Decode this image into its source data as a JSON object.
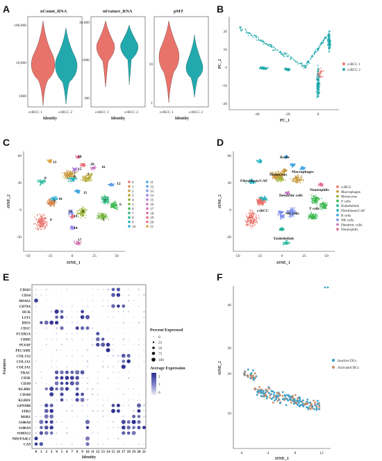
{
  "panels": {
    "A": "A",
    "B": "B",
    "C": "C",
    "D": "D",
    "E": "E",
    "F": "F"
  },
  "colors": {
    "ccRCC1": "#e8736b",
    "ccRCC2": "#22a9ad",
    "inactive": "#3aa0c8",
    "activated": "#c98b6a"
  },
  "chart_data": [
    {
      "id": "A",
      "type": "violin",
      "subplots": [
        {
          "title": "nCount_RNA",
          "yticks": [
            "100,000",
            "10,000",
            "1000"
          ],
          "xticks": [
            "ccRCC 1",
            "ccRCC 2"
          ],
          "xlabel": "Identity",
          "log": true
        },
        {
          "title": "nFeature_RNA",
          "yticks": [
            "10,000",
            "1000",
            "100"
          ],
          "xticks": [
            "ccRCC 1",
            "ccRCC 2"
          ],
          "xlabel": "Identity",
          "log": true
        },
        {
          "title": "pMT",
          "yticks": [
            "10",
            "1"
          ],
          "xticks": [
            "ccRCC 1",
            "ccRCC 2"
          ],
          "xlabel": "Identity",
          "log": true
        }
      ]
    },
    {
      "id": "B",
      "type": "scatter",
      "xlabel": "PC_1",
      "ylabel": "PC_2",
      "xticks": [
        "-40",
        "-20",
        "0"
      ],
      "yticks": [
        "20",
        "10",
        "0",
        "-10",
        "-20"
      ],
      "legend": [
        "ccRCC 1",
        "ccRCC 2"
      ]
    },
    {
      "id": "C",
      "type": "scatter",
      "xlabel": "tSNE_1",
      "ylabel": "tSNE_2",
      "xticks": [
        "-50",
        "-25",
        "0",
        "25",
        "50"
      ],
      "yticks": [
        "60",
        "30",
        "0",
        "-30"
      ],
      "clusters": [
        "0",
        "1",
        "2",
        "3",
        "4",
        "5",
        "6",
        "7",
        "8",
        "9",
        "10",
        "11",
        "12",
        "13",
        "14",
        "15",
        "16",
        "17",
        "18",
        "19",
        "20",
        "21"
      ]
    },
    {
      "id": "D",
      "type": "scatter",
      "xlabel": "tSNE_1",
      "ylabel": "tSNE_2",
      "xticks": [
        "-50",
        "-25",
        "0",
        "25",
        "50"
      ],
      "yticks": [
        "60",
        "30",
        "0",
        "-30"
      ],
      "legend": [
        "ccRCC",
        "Macrophages",
        "Monocytes",
        "T cells",
        "Endothelials",
        "Fibroblasts/CAF",
        "B cells",
        "NK cells",
        "Dendritic cells",
        "Neutrophils"
      ],
      "annotations": [
        "Bcells",
        "Monocytes",
        "Macrophages",
        "Fibroblasts/CAF",
        "Neutrophils",
        "Dendritic cells",
        "ccRCC",
        "T cells",
        "NK cells",
        "Endothelials"
      ]
    },
    {
      "id": "E",
      "type": "dotplot",
      "xlabel": "Identity",
      "ylabel": "Features",
      "genes": [
        "CD163",
        "CD14",
        "MS4A1",
        "CD79A",
        "HCK",
        "LST1",
        "IDO1",
        "CD1C",
        "FCER1A",
        "CDH5",
        "PLVAP",
        "PECAM1",
        "COL1A2",
        "COL1A1",
        "COL3A1",
        "TRAC",
        "CD3E",
        "CD3D",
        "KLRB1",
        "CD160",
        "KLRD1",
        "GPNMB",
        "FPR3",
        "MSR1",
        "S100A8",
        "S100A9",
        "S100A12",
        "NDUFA4L2",
        "CA9"
      ],
      "identities": [
        "0",
        "1",
        "2",
        "3",
        "4",
        "5",
        "6",
        "7",
        "8",
        "9",
        "10",
        "11",
        "12",
        "13",
        "14",
        "15",
        "16",
        "17",
        "18",
        "19",
        "20",
        "21"
      ],
      "size_legend_title": "Percent Expressed",
      "size_legend": [
        "0",
        "25",
        "50",
        "75",
        "100"
      ],
      "color_legend_title": "Average Expression",
      "color_legend": [
        "2",
        "1",
        "0"
      ]
    },
    {
      "id": "F",
      "type": "scatter",
      "xlabel": "tSNE_1",
      "ylabel": "tSNE_2",
      "xticks": [
        "0",
        "4",
        "8",
        "12"
      ],
      "yticks": [
        "40",
        "30",
        "20",
        "10"
      ],
      "legend": [
        "Inactive DCs",
        "Activated DCs"
      ]
    }
  ]
}
